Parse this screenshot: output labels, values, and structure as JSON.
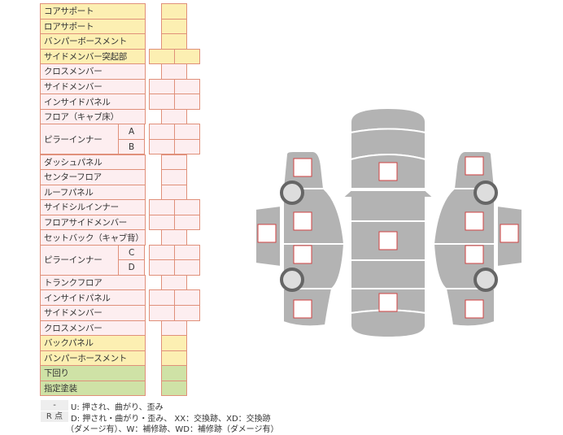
{
  "rows": [
    {
      "label": "コアサポート",
      "color": "yellow",
      "cells": 1
    },
    {
      "label": "ロアサポート",
      "color": "yellow",
      "cells": 1
    },
    {
      "label": "バンパーボースメント",
      "color": "yellow",
      "cells": 1
    },
    {
      "label": "サイドメンバー突起部",
      "color": "yellow",
      "cells": 2
    },
    {
      "label": "クロスメンバー",
      "color": "pink",
      "cells": 1
    },
    {
      "label": "サイドメンバー",
      "color": "pink",
      "cells": 2
    },
    {
      "label": "インサイドパネル",
      "color": "pink",
      "cells": 2
    },
    {
      "label": "フロア（キャブ床）",
      "color": "pink",
      "cells": 1
    },
    {
      "label": "ピラーインナー",
      "sub": "A",
      "color": "pink",
      "cells": 2
    },
    {
      "label": "",
      "sub": "B",
      "color": "pink",
      "cells": 2
    },
    {
      "label": "ダッシュパネル",
      "color": "pink",
      "cells": 1
    },
    {
      "label": "センターフロア",
      "color": "pink",
      "cells": 1
    },
    {
      "label": "ルーフパネル",
      "color": "pink",
      "cells": 1
    },
    {
      "label": "サイドシルインナー",
      "color": "pink",
      "cells": 2
    },
    {
      "label": "フロアサイドメンバー",
      "color": "pink",
      "cells": 2
    },
    {
      "label": "セットバック（キャブ背）",
      "color": "pink",
      "cells": 1
    },
    {
      "label": "ピラーインナー",
      "sub": "C",
      "color": "pink",
      "cells": 2
    },
    {
      "label": "",
      "sub": "D",
      "color": "pink",
      "cells": 2
    },
    {
      "label": "トランクフロア",
      "color": "pink",
      "cells": 1
    },
    {
      "label": "インサイドパネル",
      "color": "pink",
      "cells": 2
    },
    {
      "label": "サイドメンバー",
      "color": "pink",
      "cells": 2
    },
    {
      "label": "クロスメンバー",
      "color": "pink",
      "cells": 1
    },
    {
      "label": "バックパネル",
      "color": "yellow",
      "cells": 1
    },
    {
      "label": "バンパーホースメント",
      "color": "yellow",
      "cells": 1
    },
    {
      "label": "下回り",
      "color": "green",
      "cells": 1
    },
    {
      "label": "指定塗装",
      "color": "green",
      "cells": 1
    }
  ],
  "legend": [
    {
      "key": "-",
      "text": "U: 押され、曲がり、歪み"
    },
    {
      "key": "R 点",
      "text": "D: 押され・曲がり・歪み、 XX：交換跡、XD：交換跡"
    },
    {
      "key": "",
      "text": "（ダメージ有）、W：補修跡、WD：補修跡（ダメージ有）"
    }
  ],
  "colors": {
    "yellow": "#fcefb2",
    "pink": "#fdeef0",
    "green": "#cfe2a6",
    "border": "#e0907a",
    "body": "#b3b3b3",
    "marker": "#d04040"
  }
}
